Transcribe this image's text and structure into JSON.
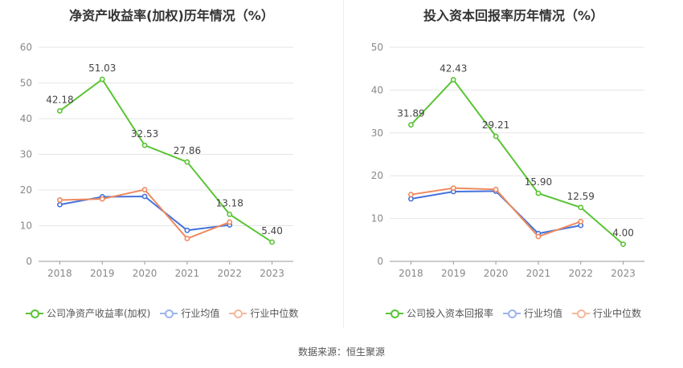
{
  "chart_data": [
    {
      "type": "line",
      "title": "净资产收益率(加权)历年情况（%）",
      "x": [
        "2018",
        "2019",
        "2020",
        "2021",
        "2022",
        "2023"
      ],
      "ylim": [
        0,
        60
      ],
      "yticks": [
        0,
        10,
        20,
        30,
        40,
        50,
        60
      ],
      "grid": true,
      "legend_position": "bottom",
      "series": [
        {
          "name": "公司净资产收益率(加权)",
          "color": "#5ac434",
          "values": [
            42.18,
            51.03,
            32.53,
            27.86,
            13.18,
            5.4
          ],
          "labels": [
            "42.18",
            "51.03",
            "32.53",
            "27.86",
            "13.18",
            "5.40"
          ]
        },
        {
          "name": "行业均值",
          "color": "#4472dd",
          "values": [
            15.9,
            18.1,
            18.2,
            8.7,
            10.2,
            null
          ]
        },
        {
          "name": "行业中位数",
          "color": "#ee8a5e",
          "values": [
            17.2,
            17.5,
            20.1,
            6.4,
            11.0,
            null
          ]
        }
      ]
    },
    {
      "type": "line",
      "title": "投入资本回报率历年情况（%）",
      "x": [
        "2018",
        "2019",
        "2020",
        "2021",
        "2022",
        "2023"
      ],
      "ylim": [
        0,
        50
      ],
      "yticks": [
        0,
        10,
        20,
        30,
        40,
        50
      ],
      "grid": true,
      "legend_position": "bottom",
      "series": [
        {
          "name": "公司投入资本回报率",
          "color": "#5ac434",
          "values": [
            31.89,
            42.43,
            29.21,
            15.9,
            12.59,
            4.0
          ],
          "labels": [
            "31.89",
            "42.43",
            "29.21",
            "15.90",
            "12.59",
            "4.00"
          ]
        },
        {
          "name": "行业均值",
          "color": "#4472dd",
          "values": [
            14.6,
            16.3,
            16.4,
            6.5,
            8.4,
            null
          ]
        },
        {
          "name": "行业中位数",
          "color": "#ee8a5e",
          "values": [
            15.6,
            17.1,
            16.8,
            5.8,
            9.3,
            null
          ]
        }
      ]
    }
  ],
  "footer": {
    "source": "数据来源：恒生聚源"
  }
}
